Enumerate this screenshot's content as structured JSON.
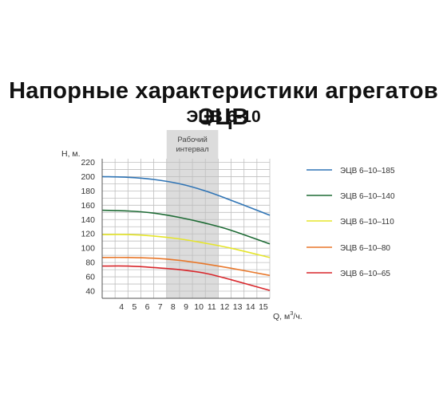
{
  "header": {
    "title": "Напорные характеристики агрегатов ЭЦВ",
    "subtitle": "ЭЦВ 6-10"
  },
  "chart_data": {
    "type": "line",
    "ylabel": "Н, м.",
    "xlabel": "Q, м³/ч.",
    "xlabel_main": "Q, м",
    "xlabel_sup": "3",
    "xlabel_tail": "/ч.",
    "xlim": [
      3,
      16
    ],
    "ylim": [
      30,
      225
    ],
    "x_ticks": [
      4,
      5,
      6,
      7,
      8,
      9,
      10,
      11,
      12,
      13,
      14,
      15
    ],
    "y_ticks": [
      220,
      200,
      180,
      160,
      140,
      120,
      100,
      80,
      60,
      40
    ],
    "grid": true,
    "legend": "right",
    "working_range": {
      "label_line1": "Рабочий",
      "label_line2": "интервал",
      "x_from": 8,
      "x_to": 12
    },
    "series": [
      {
        "name": "ЭЦВ 6–10–185",
        "color": "#2f74b5",
        "x": [
          3,
          5,
          7,
          9,
          11,
          13,
          16
        ],
        "y": [
          200,
          199,
          196,
          190,
          180,
          167,
          146
        ]
      },
      {
        "name": "ЭЦВ 6–10–140",
        "color": "#1e6b35",
        "x": [
          3,
          5,
          7,
          9,
          11,
          13,
          16
        ],
        "y": [
          153,
          152,
          149,
          143,
          135,
          125,
          106
        ]
      },
      {
        "name": "ЭЦВ 6–10–110",
        "color": "#e5e52a",
        "x": [
          3,
          5,
          7,
          9,
          11,
          13,
          16
        ],
        "y": [
          119,
          119,
          117,
          113,
          107,
          100,
          87
        ]
      },
      {
        "name": "ЭЦВ 6–10–80",
        "color": "#e8772a",
        "x": [
          3,
          5,
          7,
          9,
          11,
          13,
          16
        ],
        "y": [
          87,
          87,
          86,
          83,
          78,
          72,
          62
        ]
      },
      {
        "name": "ЭЦВ 6–10–65",
        "color": "#d8262b",
        "x": [
          3,
          5,
          7,
          9,
          11,
          13,
          16
        ],
        "y": [
          75,
          75,
          73,
          70,
          65,
          56,
          41
        ]
      }
    ]
  }
}
